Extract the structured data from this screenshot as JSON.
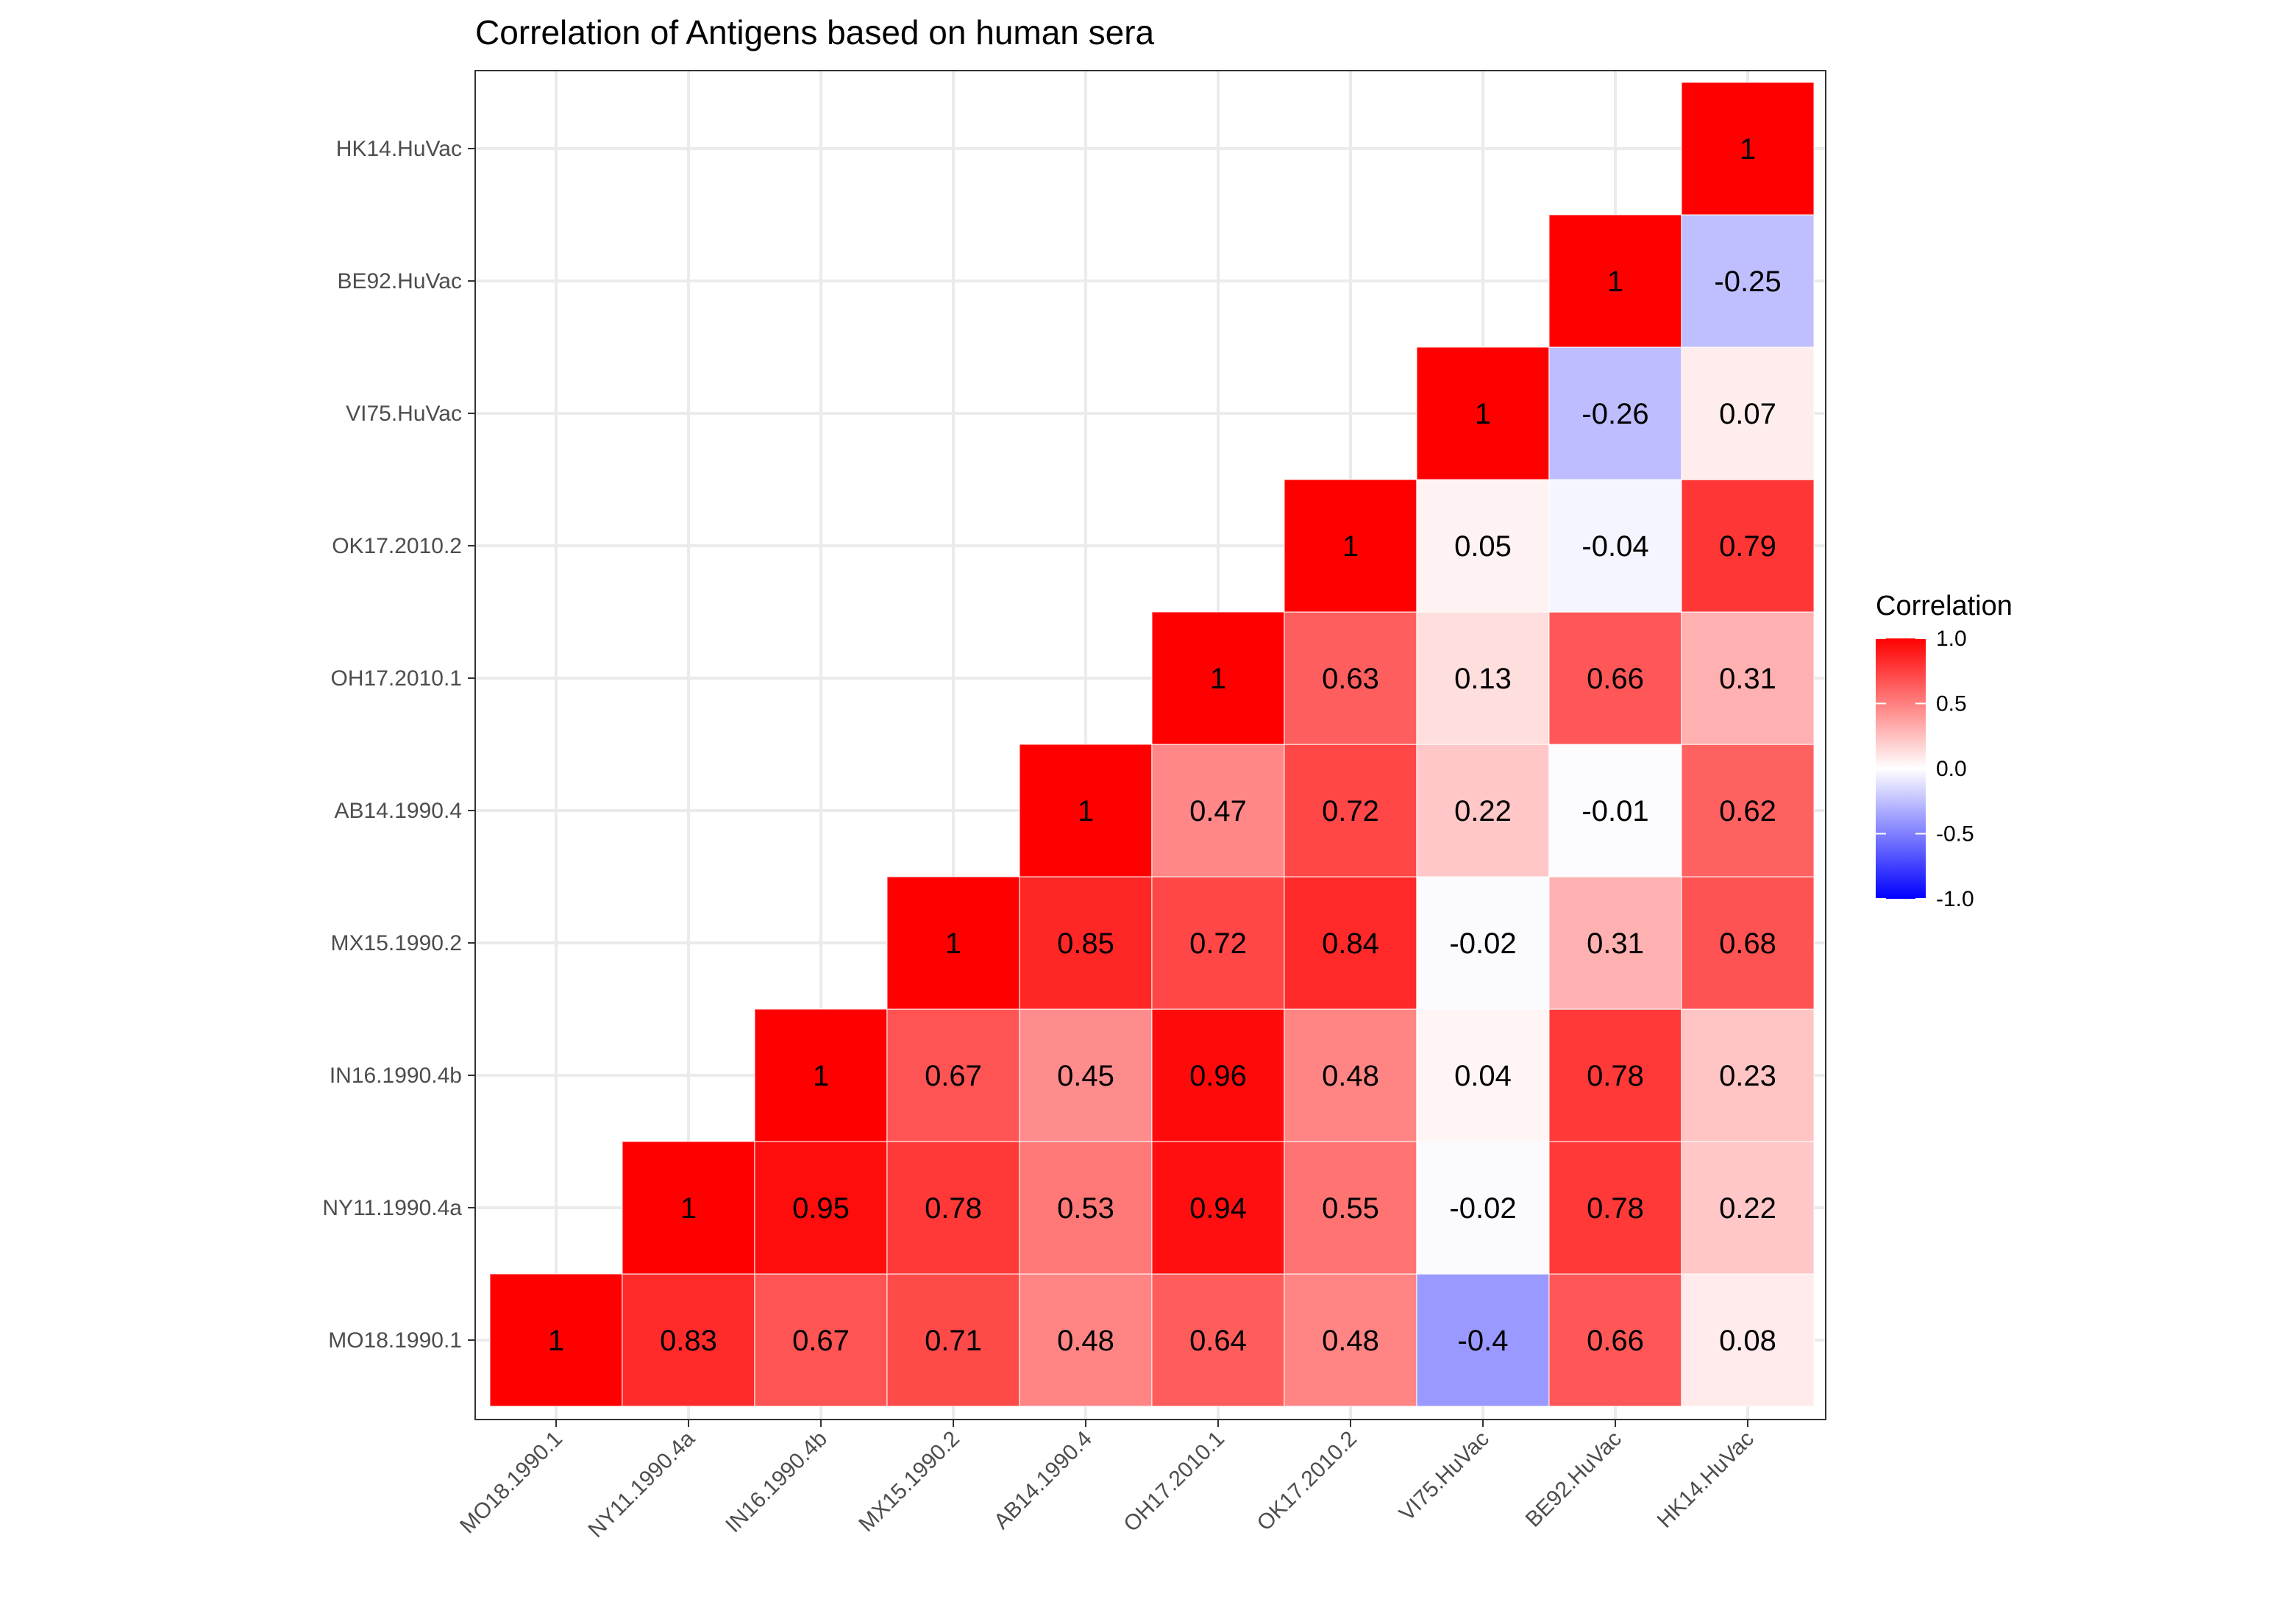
{
  "chart_data": {
    "type": "heatmap",
    "title": "Correlation of Antigens based on human sera",
    "xlabel": "",
    "ylabel": "",
    "labels": [
      "MO18.1990.1",
      "NY11.1990.4a",
      "IN16.1990.4b",
      "MX15.1990.2",
      "AB14.1990.4",
      "OH17.2010.1",
      "OK17.2010.2",
      "VI75.HuVac",
      "BE92.HuVac",
      "HK14.HuVac"
    ],
    "cells": [
      {
        "x": "MO18.1990.1",
        "y": "MO18.1990.1",
        "value": 1,
        "label": "1"
      },
      {
        "x": "NY11.1990.4a",
        "y": "MO18.1990.1",
        "value": 0.83,
        "label": "0.83"
      },
      {
        "x": "IN16.1990.4b",
        "y": "MO18.1990.1",
        "value": 0.67,
        "label": "0.67"
      },
      {
        "x": "MX15.1990.2",
        "y": "MO18.1990.1",
        "value": 0.71,
        "label": "0.71"
      },
      {
        "x": "AB14.1990.4",
        "y": "MO18.1990.1",
        "value": 0.48,
        "label": "0.48"
      },
      {
        "x": "OH17.2010.1",
        "y": "MO18.1990.1",
        "value": 0.64,
        "label": "0.64"
      },
      {
        "x": "OK17.2010.2",
        "y": "MO18.1990.1",
        "value": 0.48,
        "label": "0.48"
      },
      {
        "x": "VI75.HuVac",
        "y": "MO18.1990.1",
        "value": -0.4,
        "label": "-0.4"
      },
      {
        "x": "BE92.HuVac",
        "y": "MO18.1990.1",
        "value": 0.66,
        "label": "0.66"
      },
      {
        "x": "HK14.HuVac",
        "y": "MO18.1990.1",
        "value": 0.08,
        "label": "0.08"
      },
      {
        "x": "NY11.1990.4a",
        "y": "NY11.1990.4a",
        "value": 1,
        "label": "1"
      },
      {
        "x": "IN16.1990.4b",
        "y": "NY11.1990.4a",
        "value": 0.95,
        "label": "0.95"
      },
      {
        "x": "MX15.1990.2",
        "y": "NY11.1990.4a",
        "value": 0.78,
        "label": "0.78"
      },
      {
        "x": "AB14.1990.4",
        "y": "NY11.1990.4a",
        "value": 0.53,
        "label": "0.53"
      },
      {
        "x": "OH17.2010.1",
        "y": "NY11.1990.4a",
        "value": 0.94,
        "label": "0.94"
      },
      {
        "x": "OK17.2010.2",
        "y": "NY11.1990.4a",
        "value": 0.55,
        "label": "0.55"
      },
      {
        "x": "VI75.HuVac",
        "y": "NY11.1990.4a",
        "value": -0.02,
        "label": "-0.02"
      },
      {
        "x": "BE92.HuVac",
        "y": "NY11.1990.4a",
        "value": 0.78,
        "label": "0.78"
      },
      {
        "x": "HK14.HuVac",
        "y": "NY11.1990.4a",
        "value": 0.22,
        "label": "0.22"
      },
      {
        "x": "IN16.1990.4b",
        "y": "IN16.1990.4b",
        "value": 1,
        "label": "1"
      },
      {
        "x": "MX15.1990.2",
        "y": "IN16.1990.4b",
        "value": 0.67,
        "label": "0.67"
      },
      {
        "x": "AB14.1990.4",
        "y": "IN16.1990.4b",
        "value": 0.45,
        "label": "0.45"
      },
      {
        "x": "OH17.2010.1",
        "y": "IN16.1990.4b",
        "value": 0.96,
        "label": "0.96"
      },
      {
        "x": "OK17.2010.2",
        "y": "IN16.1990.4b",
        "value": 0.48,
        "label": "0.48"
      },
      {
        "x": "VI75.HuVac",
        "y": "IN16.1990.4b",
        "value": 0.04,
        "label": "0.04"
      },
      {
        "x": "BE92.HuVac",
        "y": "IN16.1990.4b",
        "value": 0.78,
        "label": "0.78"
      },
      {
        "x": "HK14.HuVac",
        "y": "IN16.1990.4b",
        "value": 0.23,
        "label": "0.23"
      },
      {
        "x": "MX15.1990.2",
        "y": "MX15.1990.2",
        "value": 1,
        "label": "1"
      },
      {
        "x": "AB14.1990.4",
        "y": "MX15.1990.2",
        "value": 0.85,
        "label": "0.85"
      },
      {
        "x": "OH17.2010.1",
        "y": "MX15.1990.2",
        "value": 0.72,
        "label": "0.72"
      },
      {
        "x": "OK17.2010.2",
        "y": "MX15.1990.2",
        "value": 0.84,
        "label": "0.84"
      },
      {
        "x": "VI75.HuVac",
        "y": "MX15.1990.2",
        "value": -0.02,
        "label": "-0.02"
      },
      {
        "x": "BE92.HuVac",
        "y": "MX15.1990.2",
        "value": 0.31,
        "label": "0.31"
      },
      {
        "x": "HK14.HuVac",
        "y": "MX15.1990.2",
        "value": 0.68,
        "label": "0.68"
      },
      {
        "x": "AB14.1990.4",
        "y": "AB14.1990.4",
        "value": 1,
        "label": "1"
      },
      {
        "x": "OH17.2010.1",
        "y": "AB14.1990.4",
        "value": 0.47,
        "label": "0.47"
      },
      {
        "x": "OK17.2010.2",
        "y": "AB14.1990.4",
        "value": 0.72,
        "label": "0.72"
      },
      {
        "x": "VI75.HuVac",
        "y": "AB14.1990.4",
        "value": 0.22,
        "label": "0.22"
      },
      {
        "x": "BE92.HuVac",
        "y": "AB14.1990.4",
        "value": -0.01,
        "label": "-0.01"
      },
      {
        "x": "HK14.HuVac",
        "y": "AB14.1990.4",
        "value": 0.62,
        "label": "0.62"
      },
      {
        "x": "OH17.2010.1",
        "y": "OH17.2010.1",
        "value": 1,
        "label": "1"
      },
      {
        "x": "OK17.2010.2",
        "y": "OH17.2010.1",
        "value": 0.63,
        "label": "0.63"
      },
      {
        "x": "VI75.HuVac",
        "y": "OH17.2010.1",
        "value": 0.13,
        "label": "0.13"
      },
      {
        "x": "BE92.HuVac",
        "y": "OH17.2010.1",
        "value": 0.66,
        "label": "0.66"
      },
      {
        "x": "HK14.HuVac",
        "y": "OH17.2010.1",
        "value": 0.31,
        "label": "0.31"
      },
      {
        "x": "OK17.2010.2",
        "y": "OK17.2010.2",
        "value": 1,
        "label": "1"
      },
      {
        "x": "VI75.HuVac",
        "y": "OK17.2010.2",
        "value": 0.05,
        "label": "0.05"
      },
      {
        "x": "BE92.HuVac",
        "y": "OK17.2010.2",
        "value": -0.04,
        "label": "-0.04"
      },
      {
        "x": "HK14.HuVac",
        "y": "OK17.2010.2",
        "value": 0.79,
        "label": "0.79"
      },
      {
        "x": "VI75.HuVac",
        "y": "VI75.HuVac",
        "value": 1,
        "label": "1"
      },
      {
        "x": "BE92.HuVac",
        "y": "VI75.HuVac",
        "value": -0.26,
        "label": "-0.26"
      },
      {
        "x": "HK14.HuVac",
        "y": "VI75.HuVac",
        "value": 0.07,
        "label": "0.07"
      },
      {
        "x": "BE92.HuVac",
        "y": "BE92.HuVac",
        "value": 1,
        "label": "1"
      },
      {
        "x": "HK14.HuVac",
        "y": "BE92.HuVac",
        "value": -0.25,
        "label": "-0.25"
      },
      {
        "x": "HK14.HuVac",
        "y": "HK14.HuVac",
        "value": 1,
        "label": "1"
      }
    ],
    "color_scale": {
      "low": "#0000ff",
      "mid": "#ffffff",
      "high": "#ff0000",
      "limits": [
        -1,
        1
      ]
    },
    "legend": {
      "title": "Correlation",
      "ticks": [
        "1.0",
        "0.5",
        "0.0",
        "-0.5",
        "-1.0"
      ],
      "tick_values": [
        1.0,
        0.5,
        0.0,
        -0.5,
        -1.0
      ],
      "placement": "right"
    },
    "grid": true
  }
}
